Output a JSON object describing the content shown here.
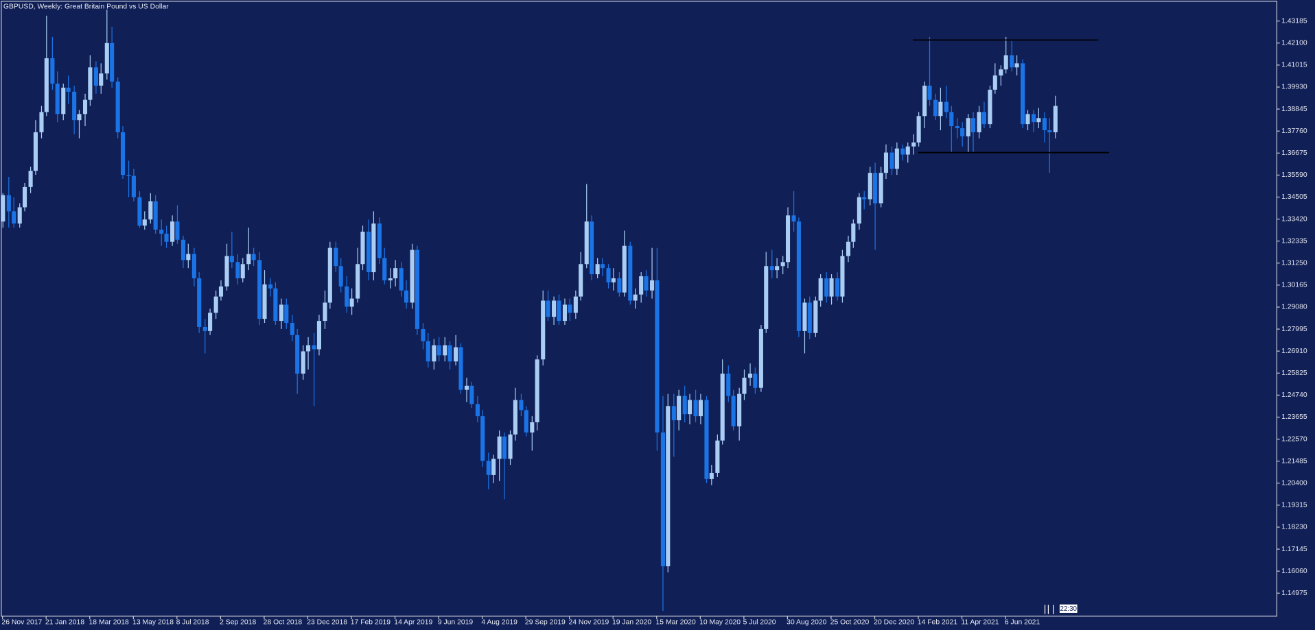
{
  "chart_data": {
    "type": "candlestick",
    "title": "GBPUSD, Weekly:  Great Britain Pound vs US Dollar",
    "up_color": "#a9cdf3",
    "down_color": "#1b74e6",
    "ylim": [
      1.1386,
      1.4414
    ],
    "yticks": [
      1.43185,
      {
        "value": 1.421,
        "label": "1.42100"
      },
      1.41015,
      {
        "value": 1.3993,
        "label": "1.39930"
      },
      1.38845,
      {
        "value": 1.3776,
        "label": "1.37760"
      },
      1.36675,
      {
        "value": 1.3559,
        "label": "1.35590"
      },
      1.34505,
      {
        "value": 1.3342,
        "label": "1.33420"
      },
      1.32335,
      {
        "value": 1.3125,
        "label": "1.31250"
      },
      1.30165,
      {
        "value": 1.2908,
        "label": "1.29080"
      },
      1.27995,
      {
        "value": 1.2691,
        "label": "1.26910"
      },
      1.25825,
      {
        "value": 1.2474,
        "label": "1.24740"
      },
      1.23655,
      {
        "value": 1.2257,
        "label": "1.22570"
      },
      1.21485,
      {
        "value": 1.204,
        "label": "1.20400"
      },
      1.19315,
      {
        "value": 1.1823,
        "label": "1.18230"
      },
      1.17145,
      {
        "value": 1.1606,
        "label": "1.16060"
      },
      1.14975
    ],
    "categories": [
      "26 Nov 2017",
      null,
      null,
      null,
      null,
      null,
      null,
      null,
      "21 Jan 2018",
      null,
      null,
      null,
      null,
      null,
      null,
      null,
      "18 Mar 2018",
      null,
      null,
      null,
      null,
      null,
      null,
      null,
      "13 May 2018",
      null,
      null,
      null,
      null,
      null,
      null,
      null,
      "8 Jul 2018",
      null,
      null,
      null,
      null,
      null,
      null,
      null,
      "2 Sep 2018",
      null,
      null,
      null,
      null,
      null,
      null,
      null,
      "28 Oct 2018",
      null,
      null,
      null,
      null,
      null,
      null,
      null,
      "23 Dec 2018",
      null,
      null,
      null,
      null,
      null,
      null,
      null,
      "17 Feb 2019",
      null,
      null,
      null,
      null,
      null,
      null,
      null,
      "14 Apr 2019",
      null,
      null,
      null,
      null,
      null,
      null,
      null,
      "9 Jun 2019",
      null,
      null,
      null,
      null,
      null,
      null,
      null,
      "4 Aug 2019",
      null,
      null,
      null,
      null,
      null,
      null,
      null,
      "29 Sep 2019",
      null,
      null,
      null,
      null,
      null,
      null,
      null,
      "24 Nov 2019",
      null,
      null,
      null,
      null,
      null,
      null,
      null,
      "19 Jan 2020",
      null,
      null,
      null,
      null,
      null,
      null,
      null,
      "15 Mar 2020",
      null,
      null,
      null,
      null,
      null,
      null,
      null,
      "10 May 2020",
      null,
      null,
      null,
      null,
      null,
      null,
      null,
      "5 Jul 2020",
      null,
      null,
      null,
      null,
      null,
      null,
      null,
      "30 Aug 2020",
      null,
      null,
      null,
      null,
      null,
      null,
      null,
      "25 Oct 2020",
      null,
      null,
      null,
      null,
      null,
      null,
      null,
      "20 Dec 2020",
      null,
      null,
      null,
      null,
      null,
      null,
      null,
      "14 Feb 2021",
      null,
      null,
      null,
      null,
      null,
      null,
      null,
      "11 Apr 2021",
      null,
      null,
      null,
      null,
      null,
      null,
      null,
      "6 Jun 2021",
      null,
      null,
      null,
      null,
      null,
      null,
      null,
      null,
      null
    ],
    "ohlc": [
      [
        1.333,
        1.347,
        1.33,
        1.346
      ],
      [
        1.346,
        1.355,
        1.33,
        1.338
      ],
      [
        1.338,
        1.345,
        1.33,
        1.332
      ],
      [
        1.332,
        1.342,
        1.33,
        1.34
      ],
      [
        1.34,
        1.352,
        1.338,
        1.35
      ],
      [
        1.35,
        1.36,
        1.347,
        1.358
      ],
      [
        1.358,
        1.383,
        1.356,
        1.377
      ],
      [
        1.377,
        1.39,
        1.374,
        1.387
      ],
      [
        1.387,
        1.4345,
        1.385,
        1.4135
      ],
      [
        1.4135,
        1.424,
        1.398,
        1.401
      ],
      [
        1.401,
        1.407,
        1.382,
        1.386
      ],
      [
        1.386,
        1.401,
        1.383,
        1.399
      ],
      [
        1.399,
        1.405,
        1.391,
        1.397
      ],
      [
        1.397,
        1.4,
        1.376,
        1.383
      ],
      [
        1.383,
        1.388,
        1.374,
        1.386
      ],
      [
        1.386,
        1.396,
        1.38,
        1.393
      ],
      [
        1.393,
        1.415,
        1.39,
        1.409
      ],
      [
        1.409,
        1.412,
        1.396,
        1.4
      ],
      [
        1.4,
        1.411,
        1.396,
        1.406
      ],
      [
        1.406,
        1.4375,
        1.403,
        1.421
      ],
      [
        1.421,
        1.429,
        1.399,
        1.402
      ],
      [
        1.402,
        1.404,
        1.374,
        1.377
      ],
      [
        1.377,
        1.38,
        1.354,
        1.356
      ],
      [
        1.356,
        1.363,
        1.345,
        1.3555
      ],
      [
        1.3555,
        1.359,
        1.343,
        1.345
      ],
      [
        1.345,
        1.348,
        1.33,
        1.331
      ],
      [
        1.331,
        1.338,
        1.329,
        1.334
      ],
      [
        1.334,
        1.347,
        1.332,
        1.343
      ],
      [
        1.343,
        1.346,
        1.327,
        1.329
      ],
      [
        1.329,
        1.334,
        1.321,
        1.327
      ],
      [
        1.327,
        1.331,
        1.32,
        1.323
      ],
      [
        1.323,
        1.336,
        1.321,
        1.333
      ],
      [
        1.333,
        1.341,
        1.322,
        1.324
      ],
      [
        1.324,
        1.326,
        1.31,
        1.314
      ],
      [
        1.314,
        1.322,
        1.31,
        1.317
      ],
      [
        1.317,
        1.32,
        1.301,
        1.305
      ],
      [
        1.305,
        1.308,
        1.278,
        1.281
      ],
      [
        1.281,
        1.285,
        1.268,
        1.279
      ],
      [
        1.279,
        1.29,
        1.277,
        1.288
      ],
      [
        1.288,
        1.299,
        1.285,
        1.296
      ],
      [
        1.296,
        1.304,
        1.294,
        1.301
      ],
      [
        1.301,
        1.322,
        1.299,
        1.316
      ],
      [
        1.316,
        1.328,
        1.31,
        1.313
      ],
      [
        1.313,
        1.317,
        1.302,
        1.305
      ],
      [
        1.305,
        1.315,
        1.303,
        1.312
      ],
      [
        1.312,
        1.33,
        1.309,
        1.317
      ],
      [
        1.317,
        1.32,
        1.311,
        1.314
      ],
      [
        1.314,
        1.318,
        1.282,
        1.285
      ],
      [
        1.285,
        1.309,
        1.283,
        1.302
      ],
      [
        1.302,
        1.305,
        1.296,
        1.3
      ],
      [
        1.3,
        1.303,
        1.282,
        1.284
      ],
      [
        1.284,
        1.295,
        1.28,
        1.292
      ],
      [
        1.292,
        1.295,
        1.28,
        1.283
      ],
      [
        1.283,
        1.287,
        1.274,
        1.277
      ],
      [
        1.277,
        1.28,
        1.248,
        1.258
      ],
      [
        1.258,
        1.272,
        1.255,
        1.269
      ],
      [
        1.269,
        1.276,
        1.26,
        1.272
      ],
      [
        1.272,
        1.278,
        1.242,
        1.27
      ],
      [
        1.27,
        1.287,
        1.267,
        1.284
      ],
      [
        1.284,
        1.299,
        1.28,
        1.293
      ],
      [
        1.293,
        1.323,
        1.29,
        1.32
      ],
      [
        1.32,
        1.323,
        1.308,
        1.311
      ],
      [
        1.311,
        1.315,
        1.298,
        1.301
      ],
      [
        1.301,
        1.306,
        1.288,
        1.291
      ],
      [
        1.291,
        1.3,
        1.287,
        1.295
      ],
      [
        1.295,
        1.32,
        1.293,
        1.312
      ],
      [
        1.312,
        1.331,
        1.309,
        1.328
      ],
      [
        1.328,
        1.334,
        1.304,
        1.308
      ],
      [
        1.308,
        1.338,
        1.304,
        1.332
      ],
      [
        1.332,
        1.335,
        1.312,
        1.315
      ],
      [
        1.315,
        1.32,
        1.302,
        1.304
      ],
      [
        1.304,
        1.31,
        1.3,
        1.305
      ],
      [
        1.305,
        1.314,
        1.301,
        1.31
      ],
      [
        1.31,
        1.313,
        1.296,
        1.299
      ],
      [
        1.299,
        1.304,
        1.29,
        1.293
      ],
      [
        1.293,
        1.322,
        1.29,
        1.319
      ],
      [
        1.319,
        1.321,
        1.277,
        1.28
      ],
      [
        1.28,
        1.283,
        1.27,
        1.274
      ],
      [
        1.274,
        1.278,
        1.261,
        1.264
      ],
      [
        1.264,
        1.275,
        1.26,
        1.272
      ],
      [
        1.272,
        1.276,
        1.264,
        1.267
      ],
      [
        1.267,
        1.276,
        1.264,
        1.272
      ],
      [
        1.272,
        1.274,
        1.26,
        1.264
      ],
      [
        1.264,
        1.277,
        1.262,
        1.271
      ],
      [
        1.271,
        1.273,
        1.248,
        1.25
      ],
      [
        1.25,
        1.256,
        1.244,
        1.252
      ],
      [
        1.252,
        1.254,
        1.241,
        1.243
      ],
      [
        1.243,
        1.247,
        1.234,
        1.237
      ],
      [
        1.237,
        1.24,
        1.212,
        1.215
      ],
      [
        1.215,
        1.219,
        1.201,
        1.208
      ],
      [
        1.208,
        1.218,
        1.204,
        1.216
      ],
      [
        1.216,
        1.23,
        1.205,
        1.227
      ],
      [
        1.227,
        1.229,
        1.196,
        1.216
      ],
      [
        1.216,
        1.23,
        1.213,
        1.228
      ],
      [
        1.228,
        1.251,
        1.225,
        1.245
      ],
      [
        1.245,
        1.248,
        1.237,
        1.24
      ],
      [
        1.24,
        1.242,
        1.227,
        1.229
      ],
      [
        1.229,
        1.237,
        1.22,
        1.234
      ],
      [
        1.234,
        1.267,
        1.23,
        1.265
      ],
      [
        1.265,
        1.299,
        1.262,
        1.294
      ],
      [
        1.294,
        1.299,
        1.284,
        1.286
      ],
      [
        1.286,
        1.296,
        1.282,
        1.294
      ],
      [
        1.294,
        1.297,
        1.282,
        1.284
      ],
      [
        1.284,
        1.295,
        1.282,
        1.292
      ],
      [
        1.292,
        1.295,
        1.284,
        1.288
      ],
      [
        1.288,
        1.299,
        1.285,
        1.296
      ],
      [
        1.296,
        1.318,
        1.294,
        1.312
      ],
      [
        1.312,
        1.3515,
        1.31,
        1.333
      ],
      [
        1.333,
        1.336,
        1.304,
        1.307
      ],
      [
        1.307,
        1.315,
        1.305,
        1.312
      ],
      [
        1.312,
        1.315,
        1.306,
        1.31
      ],
      [
        1.31,
        1.312,
        1.3,
        1.303
      ],
      [
        1.303,
        1.31,
        1.299,
        1.305
      ],
      [
        1.305,
        1.308,
        1.296,
        1.298
      ],
      [
        1.298,
        1.3285,
        1.296,
        1.321
      ],
      [
        1.321,
        1.323,
        1.292,
        1.294
      ],
      [
        1.294,
        1.3,
        1.29,
        1.297
      ],
      [
        1.297,
        1.308,
        1.293,
        1.306
      ],
      [
        1.306,
        1.309,
        1.296,
        1.299
      ],
      [
        1.299,
        1.32,
        1.295,
        1.304
      ],
      [
        1.304,
        1.32,
        1.22,
        1.229
      ],
      [
        1.229,
        1.247,
        1.141,
        1.163
      ],
      [
        1.163,
        1.248,
        1.16,
        1.242
      ],
      [
        1.242,
        1.248,
        1.217,
        1.235
      ],
      [
        1.235,
        1.25,
        1.23,
        1.247
      ],
      [
        1.247,
        1.252,
        1.234,
        1.238
      ],
      [
        1.238,
        1.248,
        1.233,
        1.245
      ],
      [
        1.245,
        1.25,
        1.234,
        1.237
      ],
      [
        1.237,
        1.248,
        1.233,
        1.245
      ],
      [
        1.245,
        1.247,
        1.204,
        1.206
      ],
      [
        1.206,
        1.213,
        1.203,
        1.209
      ],
      [
        1.209,
        1.228,
        1.207,
        1.225
      ],
      [
        1.225,
        1.265,
        1.223,
        1.258
      ],
      [
        1.258,
        1.262,
        1.244,
        1.247
      ],
      [
        1.247,
        1.25,
        1.23,
        1.232
      ],
      [
        1.232,
        1.251,
        1.225,
        1.248
      ],
      [
        1.248,
        1.26,
        1.245,
        1.256
      ],
      [
        1.256,
        1.263,
        1.252,
        1.258
      ],
      [
        1.258,
        1.261,
        1.248,
        1.251
      ],
      [
        1.251,
        1.282,
        1.249,
        1.28
      ],
      [
        1.28,
        1.318,
        1.278,
        1.311
      ],
      [
        1.311,
        1.319,
        1.305,
        1.309
      ],
      [
        1.309,
        1.315,
        1.305,
        1.311
      ],
      [
        1.311,
        1.316,
        1.307,
        1.313
      ],
      [
        1.313,
        1.34,
        1.31,
        1.336
      ],
      [
        1.336,
        1.348,
        1.328,
        1.333
      ],
      [
        1.333,
        1.335,
        1.276,
        1.279
      ],
      [
        1.279,
        1.295,
        1.268,
        1.293
      ],
      [
        1.293,
        1.296,
        1.275,
        1.278
      ],
      [
        1.278,
        1.296,
        1.276,
        1.294
      ],
      [
        1.294,
        1.307,
        1.291,
        1.305
      ],
      [
        1.305,
        1.308,
        1.293,
        1.296
      ],
      [
        1.296,
        1.307,
        1.292,
        1.305
      ],
      [
        1.305,
        1.308,
        1.294,
        1.296
      ],
      [
        1.296,
        1.319,
        1.293,
        1.316
      ],
      [
        1.316,
        1.326,
        1.313,
        1.323
      ],
      [
        1.323,
        1.334,
        1.32,
        1.332
      ],
      [
        1.332,
        1.347,
        1.329,
        1.345
      ],
      [
        1.345,
        1.348,
        1.339,
        1.344
      ],
      [
        1.344,
        1.36,
        1.341,
        1.357
      ],
      [
        1.357,
        1.362,
        1.319,
        1.342
      ],
      [
        1.342,
        1.36,
        1.34,
        1.357
      ],
      [
        1.357,
        1.371,
        1.354,
        1.367
      ],
      [
        1.367,
        1.37,
        1.356,
        1.359
      ],
      [
        1.359,
        1.372,
        1.356,
        1.369
      ],
      [
        1.369,
        1.371,
        1.363,
        1.366
      ],
      [
        1.366,
        1.372,
        1.362,
        1.37
      ],
      [
        1.37,
        1.376,
        1.366,
        1.372
      ],
      [
        1.372,
        1.387,
        1.37,
        1.385
      ],
      [
        1.385,
        1.402,
        1.379,
        1.4
      ],
      [
        1.4,
        1.424,
        1.39,
        1.393
      ],
      [
        1.393,
        1.396,
        1.383,
        1.385
      ],
      [
        1.385,
        1.399,
        1.378,
        1.392
      ],
      [
        1.392,
        1.4,
        1.384,
        1.387
      ],
      [
        1.387,
        1.39,
        1.367,
        1.38
      ],
      [
        1.38,
        1.384,
        1.374,
        1.379
      ],
      [
        1.379,
        1.382,
        1.37,
        1.375
      ],
      [
        1.375,
        1.386,
        1.367,
        1.384
      ],
      [
        1.384,
        1.387,
        1.367,
        1.377
      ],
      [
        1.377,
        1.39,
        1.374,
        1.387
      ],
      [
        1.387,
        1.392,
        1.379,
        1.381
      ],
      [
        1.381,
        1.4,
        1.379,
        1.398
      ],
      [
        1.398,
        1.411,
        1.396,
        1.405
      ],
      [
        1.405,
        1.41,
        1.4,
        1.408
      ],
      [
        1.408,
        1.424,
        1.406,
        1.415
      ],
      [
        1.415,
        1.422,
        1.407,
        1.409
      ],
      [
        1.409,
        1.415,
        1.405,
        1.411
      ],
      [
        1.411,
        1.413,
        1.379,
        1.381
      ],
      [
        1.381,
        1.388,
        1.378,
        1.386
      ],
      [
        1.386,
        1.388,
        1.377,
        1.382
      ],
      [
        1.382,
        1.389,
        1.379,
        1.384
      ],
      [
        1.384,
        1.387,
        1.372,
        1.378
      ],
      [
        1.378,
        1.384,
        1.357,
        1.377
      ],
      [
        1.377,
        1.395,
        1.374,
        1.39
      ]
    ],
    "levels": [
      {
        "value": 1.4225,
        "from": 167,
        "to": 201,
        "color": "#000000"
      },
      {
        "value": 1.367,
        "from": 168,
        "to": 203,
        "color": "#000000"
      }
    ],
    "clock_label": "22:30"
  }
}
